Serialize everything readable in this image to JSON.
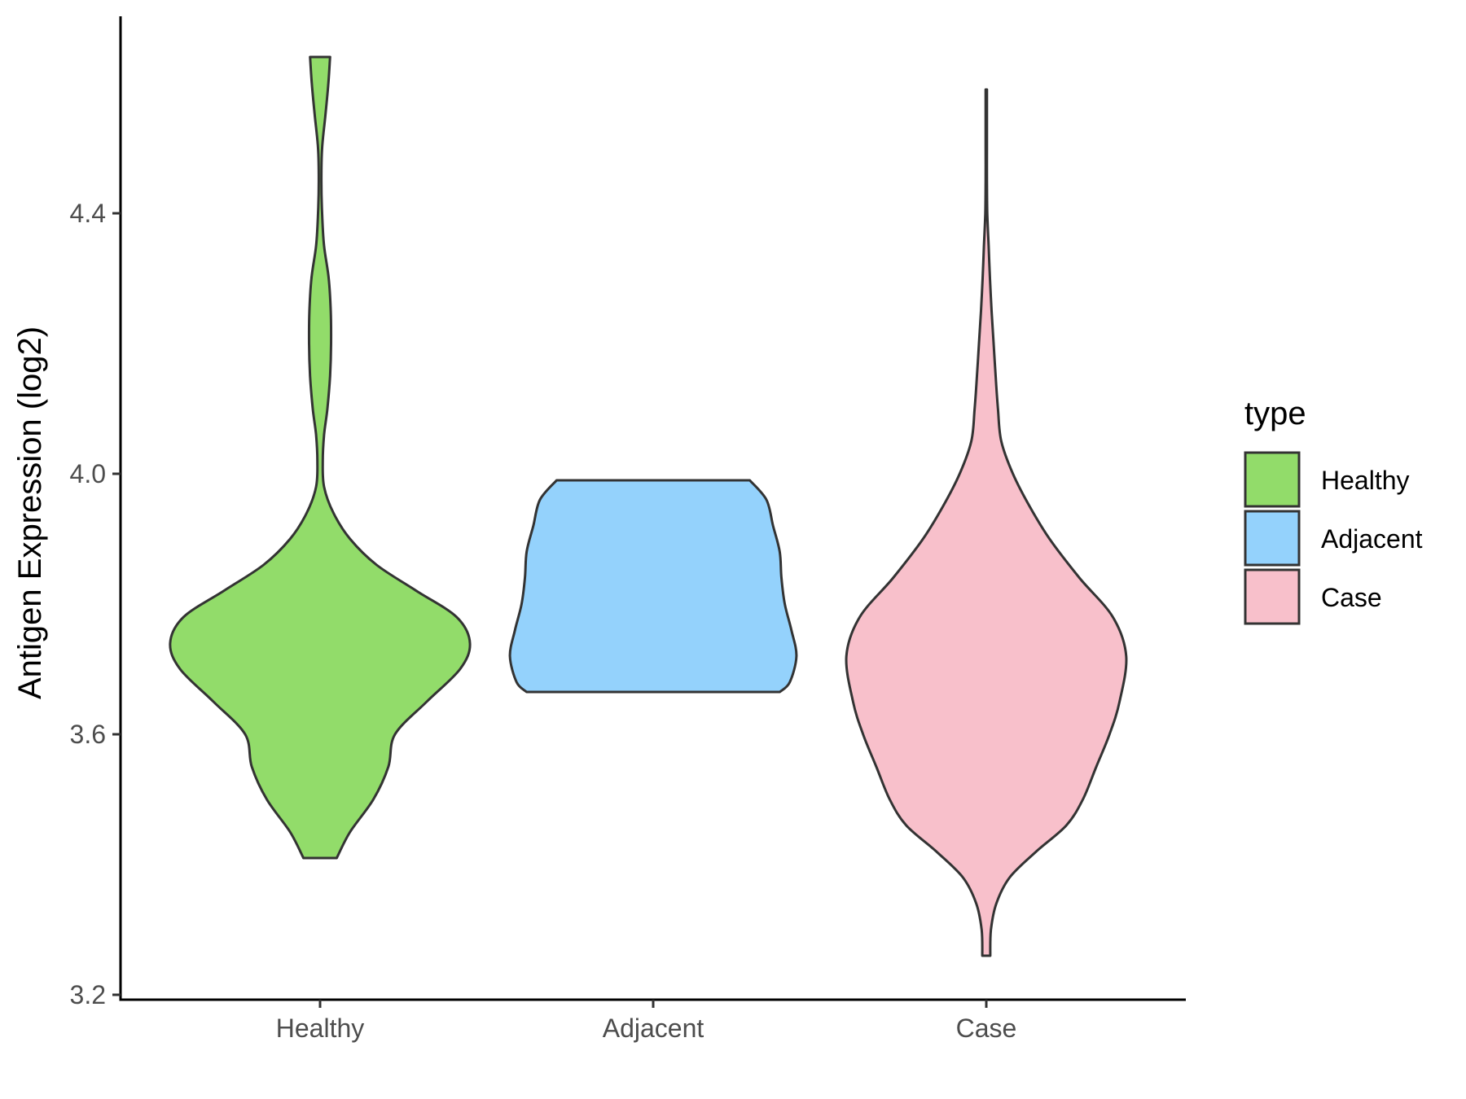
{
  "chart_data": {
    "type": "violin",
    "categories": [
      "Healthy",
      "Adjacent",
      "Case"
    ],
    "ylabel": "Antigen Expression (log2)",
    "xlabel": "",
    "ylim": [
      3.2,
      4.7
    ],
    "yticks": [
      3.2,
      3.6,
      4.0,
      4.4
    ],
    "ytick_labels": [
      "3.2",
      "3.6",
      "4.0",
      "4.4"
    ],
    "legend": {
      "title": "type",
      "position": "right",
      "entries": [
        "Healthy",
        "Adjacent",
        "Case"
      ]
    },
    "colors": {
      "Healthy": "#92dc6a",
      "Adjacent": "#94d2fc",
      "Case": "#f8c0cb",
      "outline": "#333333"
    },
    "series": [
      {
        "category": "Healthy",
        "profile": [
          [
            3.41,
            0.05
          ],
          [
            3.45,
            0.09
          ],
          [
            3.5,
            0.16
          ],
          [
            3.55,
            0.205
          ],
          [
            3.6,
            0.225
          ],
          [
            3.65,
            0.32
          ],
          [
            3.7,
            0.42
          ],
          [
            3.74,
            0.45
          ],
          [
            3.78,
            0.41
          ],
          [
            3.82,
            0.29
          ],
          [
            3.86,
            0.17
          ],
          [
            3.9,
            0.09
          ],
          [
            3.94,
            0.04
          ],
          [
            3.98,
            0.012
          ],
          [
            4.02,
            0.008
          ],
          [
            4.06,
            0.012
          ],
          [
            4.1,
            0.022
          ],
          [
            4.15,
            0.03
          ],
          [
            4.2,
            0.033
          ],
          [
            4.25,
            0.032
          ],
          [
            4.3,
            0.026
          ],
          [
            4.35,
            0.012
          ],
          [
            4.4,
            0.006
          ],
          [
            4.45,
            0.004
          ],
          [
            4.5,
            0.006
          ],
          [
            4.55,
            0.016
          ],
          [
            4.6,
            0.025
          ],
          [
            4.64,
            0.03
          ]
        ]
      },
      {
        "category": "Adjacent",
        "profile": [
          [
            3.665,
            0.38
          ],
          [
            3.68,
            0.41
          ],
          [
            3.72,
            0.43
          ],
          [
            3.76,
            0.415
          ],
          [
            3.8,
            0.395
          ],
          [
            3.84,
            0.385
          ],
          [
            3.88,
            0.38
          ],
          [
            3.92,
            0.36
          ],
          [
            3.96,
            0.34
          ],
          [
            3.99,
            0.29
          ]
        ]
      },
      {
        "category": "Case",
        "profile": [
          [
            3.26,
            0.012
          ],
          [
            3.3,
            0.014
          ],
          [
            3.34,
            0.03
          ],
          [
            3.38,
            0.07
          ],
          [
            3.42,
            0.15
          ],
          [
            3.46,
            0.24
          ],
          [
            3.5,
            0.29
          ],
          [
            3.55,
            0.33
          ],
          [
            3.6,
            0.37
          ],
          [
            3.65,
            0.4
          ],
          [
            3.72,
            0.42
          ],
          [
            3.78,
            0.38
          ],
          [
            3.84,
            0.28
          ],
          [
            3.9,
            0.19
          ],
          [
            3.95,
            0.13
          ],
          [
            4.0,
            0.08
          ],
          [
            4.05,
            0.045
          ],
          [
            4.1,
            0.035
          ],
          [
            4.15,
            0.028
          ],
          [
            4.2,
            0.022
          ],
          [
            4.25,
            0.016
          ],
          [
            4.3,
            0.011
          ],
          [
            4.35,
            0.007
          ],
          [
            4.4,
            0.003
          ],
          [
            4.45,
            0.002
          ],
          [
            4.5,
            0.002
          ],
          [
            4.55,
            0.002
          ],
          [
            4.59,
            0.002
          ]
        ]
      }
    ]
  }
}
